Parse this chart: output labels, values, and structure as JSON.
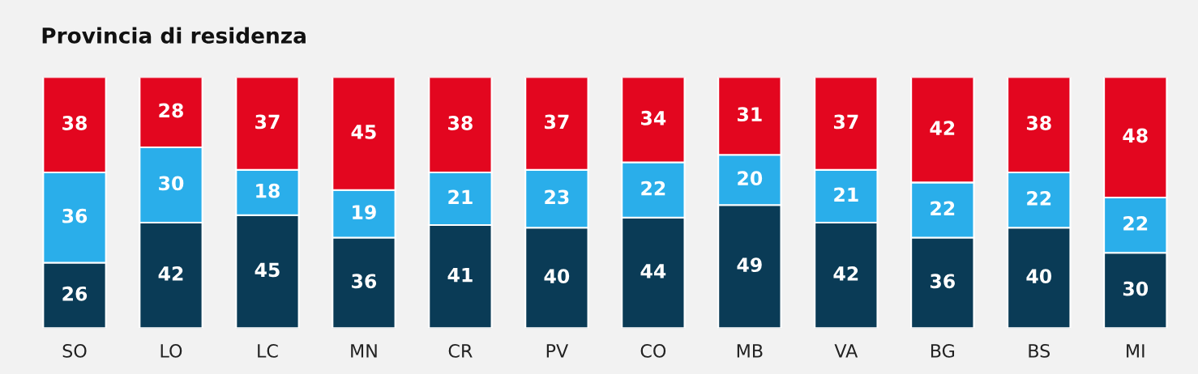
{
  "chart_data": {
    "type": "bar",
    "title": "Provincia di residenza",
    "stacked": true,
    "data_labels": true,
    "tick_labels": "x",
    "ylim": [
      0,
      100
    ],
    "categories": [
      "SO",
      "LO",
      "LC",
      "MN",
      "CR",
      "PV",
      "CO",
      "MB",
      "VA",
      "BG",
      "BS",
      "MI"
    ],
    "series": [
      {
        "color": "#0a3b56",
        "values": [
          26,
          42,
          45,
          36,
          41,
          40,
          44,
          49,
          42,
          36,
          40,
          30
        ]
      },
      {
        "color": "#2aaeea",
        "values": [
          36,
          30,
          18,
          19,
          21,
          23,
          22,
          20,
          21,
          22,
          22,
          22
        ]
      },
      {
        "color": "#e3061f",
        "values": [
          38,
          28,
          37,
          45,
          38,
          37,
          34,
          31,
          37,
          42,
          38,
          48
        ]
      }
    ]
  }
}
